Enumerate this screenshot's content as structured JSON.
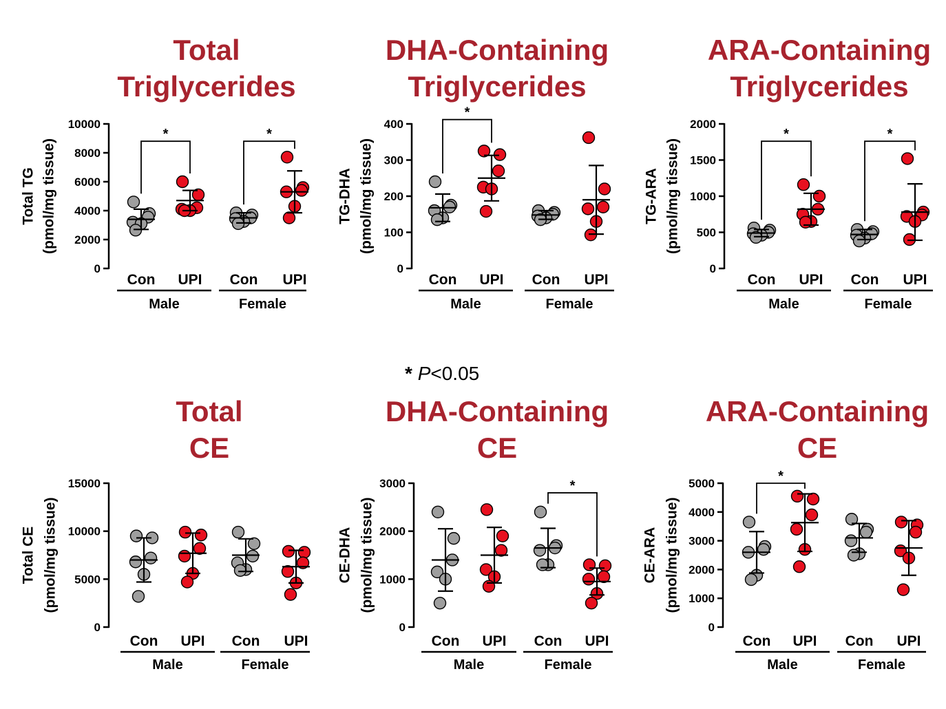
{
  "note": {
    "star": "*",
    "p": "P",
    "rest": "<0.05"
  },
  "chart_data": [
    {
      "type": "scatter",
      "title": [
        "Total",
        "Triglycerides"
      ],
      "ylabel": [
        "Total TG",
        "(pmol/mg tissue)"
      ],
      "ylim": [
        0,
        10000
      ],
      "yticks": [
        0,
        2000,
        4000,
        6000,
        8000,
        10000
      ],
      "groups": [
        {
          "label": "Male",
          "categories": [
            {
              "label": "Con",
              "color": "#9e9e9e",
              "mean": 3400,
              "sd": 700,
              "points": [
                4600,
                3800,
                3550,
                3200,
                3100,
                2650
              ]
            },
            {
              "label": "UPI",
              "color": "#e8101f",
              "mean": 4700,
              "sd": 700,
              "points": [
                6000,
                5100,
                4200,
                4100,
                4000,
                4000
              ]
            }
          ]
        },
        {
          "label": "Female",
          "categories": [
            {
              "label": "Con",
              "color": "#9e9e9e",
              "mean": 3500,
              "sd": 350,
              "points": [
                3850,
                3700,
                3500,
                3450,
                3250,
                3100
              ]
            },
            {
              "label": "UPI",
              "color": "#e8101f",
              "mean": 5300,
              "sd": 1450,
              "points": [
                7700,
                5600,
                5400,
                5300,
                4300,
                3500
              ]
            }
          ]
        }
      ],
      "significance": [
        {
          "group": "Male",
          "label": "*",
          "y": 8800
        },
        {
          "group": "Female",
          "label": "*",
          "y": 8800
        }
      ]
    },
    {
      "type": "scatter",
      "title": [
        "DHA-Containing",
        "Triglycerides"
      ],
      "ylabel": [
        "TG-DHA",
        "(pmol/mg tissue)"
      ],
      "ylim": [
        0,
        400
      ],
      "yticks": [
        0,
        100,
        200,
        300,
        400
      ],
      "groups": [
        {
          "label": "Male",
          "categories": [
            {
              "label": "Con",
              "color": "#9e9e9e",
              "mean": 168,
              "sd": 38,
              "points": [
                240,
                175,
                170,
                160,
                140,
                135
              ]
            },
            {
              "label": "UPI",
              "color": "#e8101f",
              "mean": 250,
              "sd": 63,
              "points": [
                325,
                315,
                270,
                225,
                220,
                158
              ]
            }
          ]
        },
        {
          "label": "Female",
          "categories": [
            {
              "label": "Con",
              "color": "#9e9e9e",
              "mean": 148,
              "sd": 12,
              "points": [
                160,
                155,
                150,
                145,
                140,
                135
              ]
            },
            {
              "label": "UPI",
              "color": "#e8101f",
              "mean": 190,
              "sd": 95,
              "points": [
                362,
                220,
                170,
                165,
                130,
                93
              ]
            }
          ]
        }
      ],
      "significance": [
        {
          "group": "Male",
          "label": "*",
          "y": 412
        }
      ]
    },
    {
      "type": "scatter",
      "title": [
        "ARA-Containing",
        "Triglycerides"
      ],
      "ylabel": [
        "TG-ARA",
        "(pmol/mg tissue)"
      ],
      "ylim": [
        0,
        2000
      ],
      "yticks": [
        0,
        500,
        1000,
        1500,
        2000
      ],
      "groups": [
        {
          "label": "Male",
          "categories": [
            {
              "label": "Con",
              "color": "#9e9e9e",
              "mean": 490,
              "sd": 50,
              "points": [
                560,
                530,
                500,
                480,
                460,
                430
              ]
            },
            {
              "label": "UPI",
              "color": "#e8101f",
              "mean": 820,
              "sd": 220,
              "points": [
                1160,
                1000,
                820,
                750,
                650,
                640
              ]
            }
          ]
        },
        {
          "label": "Female",
          "categories": [
            {
              "label": "Con",
              "color": "#9e9e9e",
              "mean": 470,
              "sd": 70,
              "points": [
                540,
                510,
                480,
                460,
                420,
                380
              ]
            },
            {
              "label": "UPI",
              "color": "#e8101f",
              "mean": 780,
              "sd": 390,
              "points": [
                1520,
                780,
                740,
                720,
                650,
                400
              ]
            }
          ]
        }
      ],
      "significance": [
        {
          "group": "Male",
          "label": "*",
          "y": 1760
        },
        {
          "group": "Female",
          "label": "*",
          "y": 1760
        }
      ]
    },
    {
      "type": "scatter",
      "title": [
        "Total",
        "CE"
      ],
      "ylabel": [
        "Total CE",
        "(pmol/mg tissue)"
      ],
      "ylim": [
        0,
        15000
      ],
      "yticks": [
        0,
        5000,
        10000,
        15000
      ],
      "groups": [
        {
          "label": "Male",
          "categories": [
            {
              "label": "Con",
              "color": "#9e9e9e",
              "mean": 7000,
              "sd": 2300,
              "points": [
                9500,
                9300,
                7200,
                6800,
                5500,
                3200
              ]
            },
            {
              "label": "UPI",
              "color": "#e8101f",
              "mean": 7700,
              "sd": 2100,
              "points": [
                9900,
                9600,
                8200,
                7400,
                5600,
                4700
              ]
            }
          ]
        },
        {
          "label": "Female",
          "categories": [
            {
              "label": "Con",
              "color": "#9e9e9e",
              "mean": 7500,
              "sd": 1700,
              "points": [
                9900,
                8700,
                7400,
                6700,
                6000,
                5900
              ]
            },
            {
              "label": "UPI",
              "color": "#e8101f",
              "mean": 6300,
              "sd": 1700,
              "points": [
                7900,
                7800,
                6700,
                5800,
                4600,
                3400
              ]
            }
          ]
        }
      ],
      "significance": []
    },
    {
      "type": "scatter",
      "title": [
        "DHA-Containing",
        "CE"
      ],
      "ylabel": [
        "CE-DHA",
        "(pmol/mg tissue)"
      ],
      "ylim": [
        0,
        3000
      ],
      "yticks": [
        0,
        1000,
        2000,
        3000
      ],
      "groups": [
        {
          "label": "Male",
          "categories": [
            {
              "label": "Con",
              "color": "#9e9e9e",
              "mean": 1400,
              "sd": 650,
              "points": [
                2400,
                1850,
                1400,
                1150,
                1000,
                500
              ]
            },
            {
              "label": "UPI",
              "color": "#e8101f",
              "mean": 1500,
              "sd": 580,
              "points": [
                2450,
                1900,
                1600,
                1200,
                1050,
                850
              ]
            }
          ]
        },
        {
          "label": "Female",
          "categories": [
            {
              "label": "Con",
              "color": "#9e9e9e",
              "mean": 1650,
              "sd": 410,
              "points": [
                2400,
                1700,
                1650,
                1600,
                1300,
                1300
              ]
            },
            {
              "label": "UPI",
              "color": "#e8101f",
              "mean": 950,
              "sd": 280,
              "points": [
                1300,
                1280,
                1050,
                1000,
                700,
                500
              ]
            }
          ]
        }
      ],
      "significance": [
        {
          "group": "Female",
          "label": "*",
          "y": 2800
        }
      ]
    },
    {
      "type": "scatter",
      "title": [
        "ARA-Containing",
        "CE"
      ],
      "ylabel": [
        "CE-ARA",
        "(pmol/mg tissue)"
      ],
      "ylim": [
        0,
        5000
      ],
      "yticks": [
        0,
        1000,
        2000,
        3000,
        4000,
        5000
      ],
      "groups": [
        {
          "label": "Male",
          "categories": [
            {
              "label": "Con",
              "color": "#9e9e9e",
              "mean": 2600,
              "sd": 720,
              "points": [
                3650,
                2800,
                2700,
                2600,
                1800,
                1650
              ]
            },
            {
              "label": "UPI",
              "color": "#e8101f",
              "mean": 3630,
              "sd": 1000,
              "points": [
                4550,
                4450,
                3900,
                3400,
                2700,
                2100
              ]
            }
          ]
        },
        {
          "label": "Female",
          "categories": [
            {
              "label": "Con",
              "color": "#9e9e9e",
              "mean": 3100,
              "sd": 500,
              "points": [
                3750,
                3400,
                3300,
                3000,
                2550,
                2500
              ]
            },
            {
              "label": "UPI",
              "color": "#e8101f",
              "mean": 2750,
              "sd": 950,
              "points": [
                3650,
                3550,
                3300,
                2650,
                2400,
                1300
              ]
            }
          ]
        }
      ],
      "significance": [
        {
          "group": "Male",
          "label": "*",
          "y": 5000
        }
      ]
    }
  ]
}
